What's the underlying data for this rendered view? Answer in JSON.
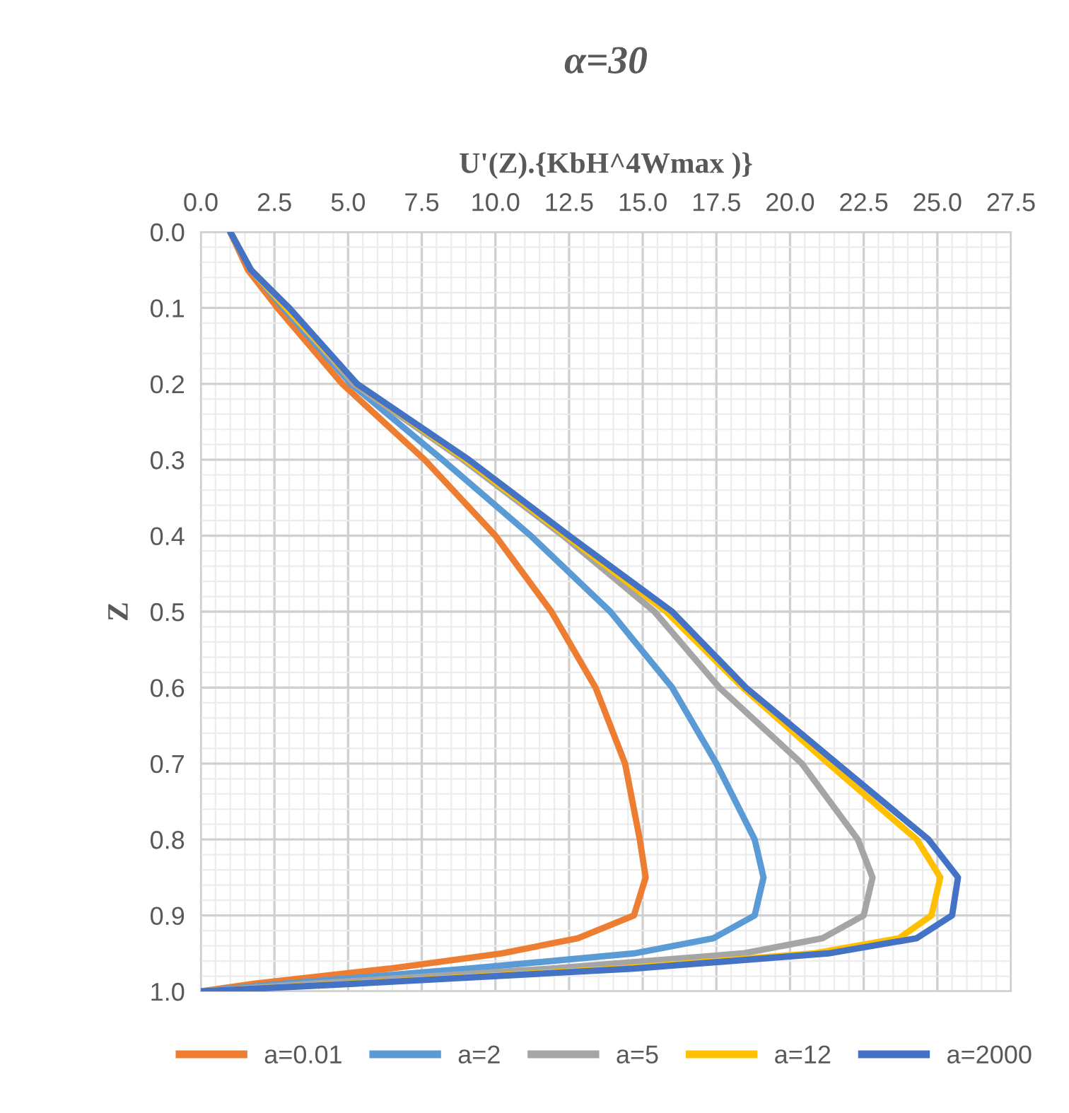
{
  "chart_data": {
    "type": "line",
    "title": "α=30",
    "xlabel": "U'(Z).{KbH^4Wmax )}",
    "ylabel": "Z",
    "xlim": [
      0,
      27.5
    ],
    "ylim": [
      1.0,
      0.0
    ],
    "xticks": [
      {
        "value": 0,
        "label": "0.0"
      },
      {
        "value": 2.5,
        "label": "2.5"
      },
      {
        "value": 5,
        "label": "5.0"
      },
      {
        "value": 7.5,
        "label": "7.5"
      },
      {
        "value": 10,
        "label": "10.0"
      },
      {
        "value": 12.5,
        "label": "12.5"
      },
      {
        "value": 15,
        "label": "15.0"
      },
      {
        "value": 17.5,
        "label": "17.5"
      },
      {
        "value": 20,
        "label": "20.0"
      },
      {
        "value": 22.5,
        "label": "22.5"
      },
      {
        "value": 25,
        "label": "25.0"
      },
      {
        "value": 27.5,
        "label": "27.5"
      }
    ],
    "yticks": [
      {
        "value": 0,
        "label": "0.0"
      },
      {
        "value": 0.1,
        "label": "0.1"
      },
      {
        "value": 0.2,
        "label": "0.2"
      },
      {
        "value": 0.3,
        "label": "0.3"
      },
      {
        "value": 0.4,
        "label": "0.4"
      },
      {
        "value": 0.5,
        "label": "0.5"
      },
      {
        "value": 0.6,
        "label": "0.6"
      },
      {
        "value": 0.7,
        "label": "0.7"
      },
      {
        "value": 0.8,
        "label": "0.8"
      },
      {
        "value": 0.9,
        "label": "0.9"
      },
      {
        "value": 1.0,
        "label": "1.0"
      }
    ],
    "grid": true,
    "legend": "bottom",
    "marker": "none",
    "line_style": "solid",
    "series": [
      {
        "name": "a=0.01",
        "color": "#ed7d31",
        "x": [
          1.0,
          1.6,
          2.6,
          4.8,
          7.6,
          10.0,
          11.9,
          13.4,
          14.4,
          14.9,
          15.1,
          14.7,
          12.8,
          10.2,
          6.4,
          1.8,
          0
        ],
        "values": [
          0,
          0.05,
          0.1,
          0.2,
          0.3,
          0.4,
          0.5,
          0.6,
          0.7,
          0.8,
          0.85,
          0.9,
          0.93,
          0.95,
          0.97,
          0.99,
          1.0
        ]
      },
      {
        "name": "a=2",
        "color": "#5b9bd5",
        "x": [
          1.0,
          1.7,
          2.8,
          5.1,
          8.2,
          11.2,
          13.9,
          16.0,
          17.5,
          18.8,
          19.1,
          18.8,
          17.4,
          14.7,
          9.1,
          2.8,
          0
        ],
        "values": [
          0,
          0.05,
          0.1,
          0.2,
          0.3,
          0.4,
          0.5,
          0.6,
          0.7,
          0.8,
          0.85,
          0.9,
          0.93,
          0.95,
          0.97,
          0.99,
          1.0
        ]
      },
      {
        "name": "a=5",
        "color": "#a5a5a5",
        "x": [
          1.0,
          1.7,
          2.9,
          5.2,
          8.9,
          12.3,
          15.4,
          17.6,
          20.4,
          22.3,
          22.8,
          22.5,
          21.1,
          18.4,
          11.9,
          3.7,
          0
        ],
        "values": [
          0,
          0.05,
          0.1,
          0.2,
          0.3,
          0.4,
          0.5,
          0.6,
          0.7,
          0.8,
          0.85,
          0.9,
          0.93,
          0.95,
          0.97,
          0.99,
          1.0
        ]
      },
      {
        "name": "a=12",
        "color": "#ffc000",
        "x": [
          1.0,
          1.7,
          2.9,
          5.3,
          9.0,
          12.4,
          15.8,
          18.4,
          21.3,
          24.3,
          25.1,
          24.8,
          23.7,
          20.8,
          14.2,
          5.0,
          0
        ],
        "values": [
          0,
          0.05,
          0.1,
          0.2,
          0.3,
          0.4,
          0.5,
          0.6,
          0.7,
          0.8,
          0.85,
          0.9,
          0.93,
          0.95,
          0.97,
          0.99,
          1.0
        ]
      },
      {
        "name": "a=2000",
        "color": "#4472c4",
        "x": [
          1.0,
          1.7,
          3.0,
          5.3,
          9.1,
          12.5,
          16.0,
          18.5,
          21.6,
          24.7,
          25.7,
          25.5,
          24.3,
          21.3,
          14.7,
          5.2,
          0
        ],
        "values": [
          0,
          0.05,
          0.1,
          0.2,
          0.3,
          0.4,
          0.5,
          0.6,
          0.7,
          0.8,
          0.85,
          0.9,
          0.93,
          0.95,
          0.97,
          0.99,
          1.0
        ]
      }
    ]
  }
}
